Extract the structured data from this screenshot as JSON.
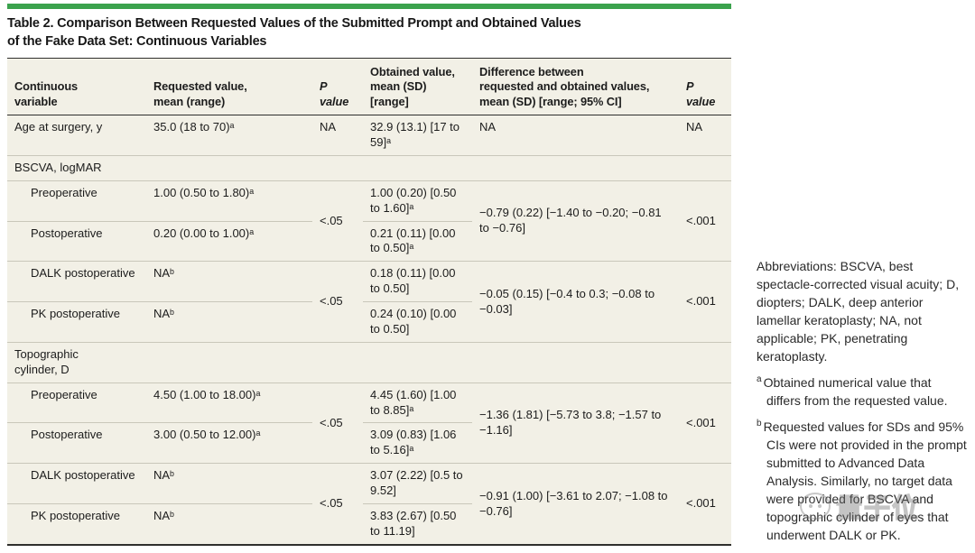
{
  "colors": {
    "accent_green": "#3ba24d",
    "table_background": "#f2f0e6",
    "rule_dark": "#2f2f2d",
    "rule_light": "#c9c7ba"
  },
  "title": {
    "line1": "Table 2. Comparison Between Requested Values of the Submitted Prompt and Obtained Values",
    "line2": "of the Fake Data Set: Continuous Variables"
  },
  "table": {
    "headers": [
      "Continuous\nvariable",
      "Requested value,\nmean (range)",
      "P\nvalue",
      "Obtained value,\nmean (SD)\n[range]",
      "Difference between\nrequested and obtained values,\nmean (SD) [range; 95% CI]",
      "P\nvalue"
    ],
    "rows": {
      "age": {
        "variable": "Age at surgery, y",
        "requested": "35.0 (18 to 70)ᵃ",
        "p": "NA",
        "obtained": "32.9 (13.1) [17 to 59]ᵃ",
        "difference": "NA",
        "p2": "NA"
      },
      "bscva_section": "BSCVA, logMAR",
      "bscva_pre": {
        "variable": "Preoperative",
        "requested": "1.00 (0.50 to 1.80)ᵃ",
        "p": "<.05",
        "obtained": "1.00 (0.20) [0.50 to 1.60]ᵃ",
        "difference": "−0.79 (0.22) [−1.40 to −0.20; −0.81 to −0.76]",
        "p2": "<.001"
      },
      "bscva_post": {
        "variable": "Postoperative",
        "requested": "0.20 (0.00 to 1.00)ᵃ",
        "obtained": "0.21 (0.11) [0.00 to 0.50]ᵃ"
      },
      "bscva_dalk": {
        "variable": "DALK postoperative",
        "requested": "NAᵇ",
        "p": "<.05",
        "obtained": "0.18 (0.11) [0.00 to 0.50]",
        "difference": "−0.05 (0.15) [−0.4 to 0.3; −0.08 to −0.03]",
        "p2": "<.001"
      },
      "bscva_pk": {
        "variable": "PK postoperative",
        "requested": "NAᵇ",
        "obtained": "0.24 (0.10) [0.00 to 0.50]"
      },
      "topo_section": "Topographic\ncylinder, D",
      "topo_pre": {
        "variable": "Preoperative",
        "requested": "4.50 (1.00 to 18.00)ᵃ",
        "p": "<.05",
        "obtained": "4.45 (1.60) [1.00 to 8.85]ᵃ",
        "difference": "−1.36 (1.81) [−5.73 to 3.8; −1.57 to −1.16]",
        "p2": "<.001"
      },
      "topo_post": {
        "variable": "Postoperative",
        "requested": "3.00 (0.50 to 12.00)ᵃ",
        "obtained": "3.09 (0.83) [1.06 to 5.16]ᵃ"
      },
      "topo_dalk": {
        "variable": "DALK postoperative",
        "requested": "NAᵇ",
        "p": "<.05",
        "obtained": "3.07 (2.22) [0.5 to 9.52]",
        "difference": "−0.91 (1.00) [−3.61 to 2.07; −1.08 to −0.76]",
        "p2": "<.001"
      },
      "topo_pk": {
        "variable": "PK postoperative",
        "requested": "NAᵇ",
        "obtained": "3.83 (2.67) [0.50 to 11.19]"
      }
    }
  },
  "sidebar": {
    "abbreviations": "Abbreviations: BSCVA, best spectacle-corrected visual acuity; D, diopters; DALK, deep anterior lamellar keratoplasty; NA, not applicable; PK, penetrating keratoplasty.",
    "footnotes": [
      {
        "marker": "a",
        "text": "Obtained numerical value that differs from the requested value."
      },
      {
        "marker": "b",
        "text": "Requested values for SDs and 95% CIs were not provided in the prompt submitted to Advanced Data Analysis. Similarly, no target data were provided for BSCVA and topographic cylinder of eyes that underwent DALK or PK."
      }
    ]
  },
  "watermark": {
    "text": "量子位",
    "icon": "chat-face-icon"
  }
}
